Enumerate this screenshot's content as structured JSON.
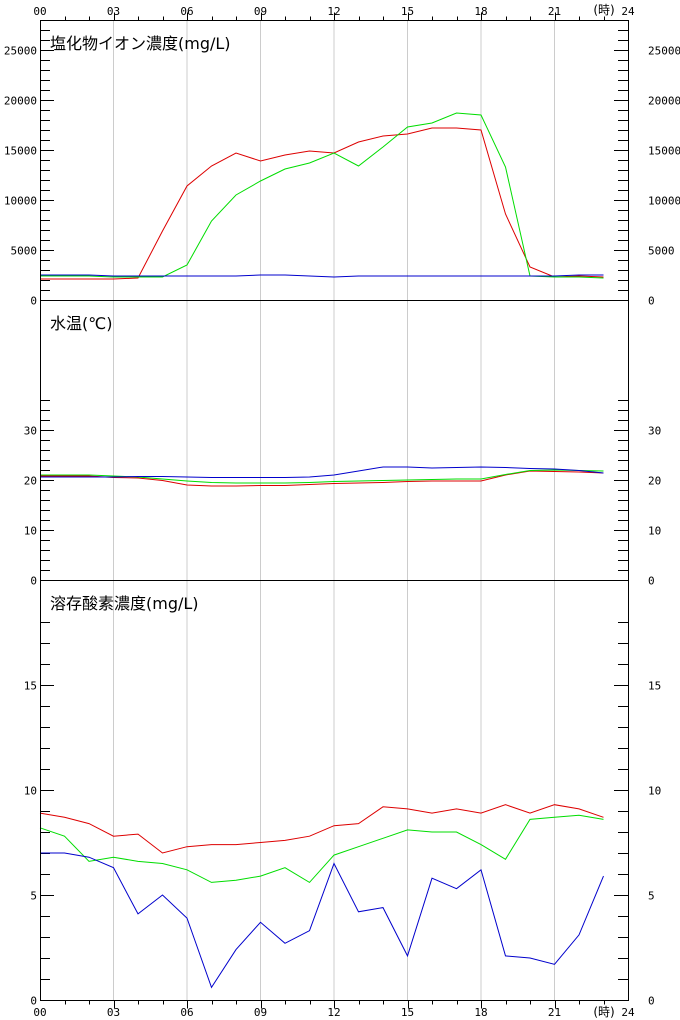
{
  "x_unit": "(時)",
  "x_ticks": [
    "00",
    "03",
    "06",
    "09",
    "12",
    "15",
    "18",
    "21",
    "24"
  ],
  "colors": {
    "red": "#dd0000",
    "green": "#00dd00",
    "blue": "#0000cc",
    "grid": "#cccccc",
    "frame": "#000000"
  },
  "chart_data": [
    {
      "type": "line",
      "title": "塩化物イオン濃度(mg/L)",
      "ylim": [
        0,
        28000
      ],
      "y_ticks": [
        0,
        5000,
        10000,
        15000,
        20000,
        25000
      ],
      "y_tick_labels": [
        "0",
        "5000",
        "10000",
        "15000",
        "20000",
        "25000"
      ],
      "y_minor_step": 1000,
      "x": [
        0,
        1,
        2,
        3,
        4,
        5,
        6,
        7,
        8,
        9,
        10,
        11,
        12,
        13,
        14,
        15,
        16,
        17,
        18,
        19,
        20,
        21,
        22,
        23
      ],
      "series": [
        {
          "color": "red",
          "values": [
            2100,
            2100,
            2100,
            2100,
            2200,
            6900,
            11400,
            13400,
            14700,
            13900,
            14500,
            14900,
            14700,
            15800,
            16400,
            16600,
            17200,
            17200,
            17000,
            8600,
            3300,
            2300,
            2400,
            2300
          ]
        },
        {
          "color": "green",
          "values": [
            2400,
            2400,
            2400,
            2300,
            2300,
            2300,
            3500,
            7900,
            10500,
            11900,
            13100,
            13700,
            14700,
            13400,
            15300,
            17300,
            17700,
            18700,
            18500,
            13300,
            2400,
            2300,
            2300,
            2200
          ]
        },
        {
          "color": "blue",
          "values": [
            2500,
            2500,
            2500,
            2400,
            2400,
            2400,
            2400,
            2400,
            2400,
            2500,
            2500,
            2400,
            2300,
            2400,
            2400,
            2400,
            2400,
            2400,
            2400,
            2400,
            2400,
            2400,
            2500,
            2500
          ]
        }
      ]
    },
    {
      "type": "line",
      "title": "水温(℃)",
      "ylim": [
        0,
        56
      ],
      "y_ticks": [
        0,
        10,
        20,
        30
      ],
      "y_tick_labels": [
        "0",
        "10",
        "20",
        "30"
      ],
      "y_minor_step": 2,
      "y_minor_max": 36,
      "x": [
        0,
        1,
        2,
        3,
        4,
        5,
        6,
        7,
        8,
        9,
        10,
        11,
        12,
        13,
        14,
        15,
        16,
        17,
        18,
        19,
        20,
        21,
        22,
        23
      ],
      "series": [
        {
          "color": "red",
          "values": [
            20.8,
            20.8,
            20.8,
            20.5,
            20.4,
            19.9,
            19.0,
            18.8,
            18.8,
            18.9,
            18.9,
            19.1,
            19.3,
            19.4,
            19.5,
            19.7,
            19.8,
            19.8,
            19.8,
            21.0,
            21.8,
            21.7,
            21.6,
            21.4
          ]
        },
        {
          "color": "green",
          "values": [
            21.0,
            21.0,
            21.0,
            20.8,
            20.6,
            20.2,
            19.8,
            19.5,
            19.4,
            19.4,
            19.4,
            19.5,
            19.7,
            19.8,
            19.9,
            20.0,
            20.1,
            20.2,
            20.2,
            21.1,
            21.9,
            22.0,
            21.9,
            21.8
          ]
        },
        {
          "color": "blue",
          "values": [
            20.6,
            20.6,
            20.6,
            20.6,
            20.7,
            20.7,
            20.6,
            20.5,
            20.5,
            20.5,
            20.5,
            20.6,
            21.0,
            21.8,
            22.6,
            22.6,
            22.4,
            22.5,
            22.6,
            22.5,
            22.3,
            22.2,
            21.9,
            21.4
          ]
        }
      ]
    },
    {
      "type": "line",
      "title": "溶存酸素濃度(mg/L)",
      "ylim": [
        0,
        20
      ],
      "y_ticks": [
        0,
        5,
        10,
        15
      ],
      "y_tick_labels": [
        "0",
        "5",
        "10",
        "15"
      ],
      "y_minor_step": 1,
      "y_minor_max": 18,
      "x": [
        0,
        1,
        2,
        3,
        4,
        5,
        6,
        7,
        8,
        9,
        10,
        11,
        12,
        13,
        14,
        15,
        16,
        17,
        18,
        19,
        20,
        21,
        22,
        23
      ],
      "series": [
        {
          "color": "red",
          "values": [
            8.9,
            8.7,
            8.4,
            7.8,
            7.9,
            7.0,
            7.3,
            7.4,
            7.4,
            7.5,
            7.6,
            7.8,
            8.3,
            8.4,
            9.2,
            9.1,
            8.9,
            9.1,
            8.9,
            9.3,
            8.9,
            9.3,
            9.1,
            8.7
          ]
        },
        {
          "color": "green",
          "values": [
            8.2,
            7.8,
            6.6,
            6.8,
            6.6,
            6.5,
            6.2,
            5.6,
            5.7,
            5.9,
            6.3,
            5.6,
            6.9,
            7.3,
            7.7,
            8.1,
            8.0,
            8.0,
            7.4,
            6.7,
            8.6,
            8.7,
            8.8,
            8.6
          ]
        },
        {
          "color": "blue",
          "values": [
            7.0,
            7.0,
            6.8,
            6.3,
            4.1,
            5.0,
            3.9,
            0.6,
            2.4,
            3.7,
            2.7,
            3.3,
            6.5,
            4.2,
            4.4,
            2.1,
            5.8,
            5.3,
            6.2,
            2.1,
            2.0,
            1.7,
            3.1,
            5.9
          ]
        }
      ]
    }
  ]
}
